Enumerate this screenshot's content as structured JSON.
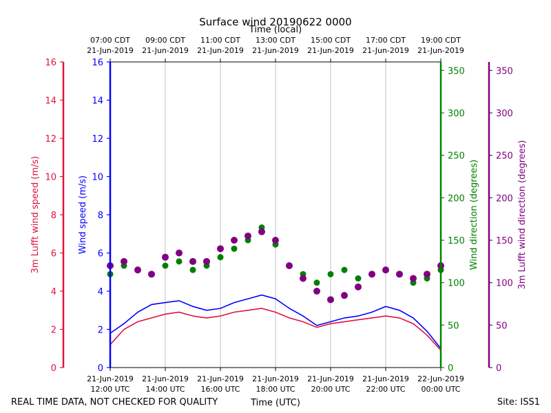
{
  "chart_data": {
    "type": "line",
    "title": "Surface wind 20190622 0000",
    "top_axis_label": "Time (local)",
    "xlabel": "Time (UTC)",
    "footer_left": "REAL TIME DATA, NOT CHECKED FOR QUALITY",
    "footer_right": "Site: ISS1",
    "x_range_hours_utc": [
      12,
      24
    ],
    "grid": true,
    "bottom_ticks": [
      {
        "hour": 12,
        "line1": "21-Jun-2019",
        "line2": "12:00 UTC"
      },
      {
        "hour": 14,
        "line1": "21-Jun-2019",
        "line2": "14:00 UTC"
      },
      {
        "hour": 16,
        "line1": "21-Jun-2019",
        "line2": "16:00 UTC"
      },
      {
        "hour": 18,
        "line1": "21-Jun-2019",
        "line2": "18:00 UTC"
      },
      {
        "hour": 20,
        "line1": "21-Jun-2019",
        "line2": "20:00 UTC"
      },
      {
        "hour": 22,
        "line1": "21-Jun-2019",
        "line2": "22:00 UTC"
      },
      {
        "hour": 24,
        "line1": "22-Jun-2019",
        "line2": "00:00 UTC"
      }
    ],
    "top_ticks": [
      {
        "hour": 12,
        "line1": "07:00 CDT",
        "line2": "21-Jun-2019"
      },
      {
        "hour": 14,
        "line1": "09:00 CDT",
        "line2": "21-Jun-2019"
      },
      {
        "hour": 16,
        "line1": "11:00 CDT",
        "line2": "21-Jun-2019"
      },
      {
        "hour": 18,
        "line1": "13:00 CDT",
        "line2": "21-Jun-2019"
      },
      {
        "hour": 20,
        "line1": "15:00 CDT",
        "line2": "21-Jun-2019"
      },
      {
        "hour": 22,
        "line1": "17:00 CDT",
        "line2": "21-Jun-2019"
      },
      {
        "hour": 24,
        "line1": "19:00 CDT",
        "line2": "21-Jun-2019"
      }
    ],
    "axes": {
      "lufft_speed": {
        "label": "3m Lufft wind speed (m/s)",
        "color": "#dc143c",
        "range": [
          0,
          16
        ],
        "ticks": [
          0,
          2,
          4,
          6,
          8,
          10,
          12,
          14,
          16
        ]
      },
      "wind_speed": {
        "label": "Wind speed (m/s)",
        "color": "#0000ff",
        "range": [
          0,
          16
        ],
        "ticks": [
          0,
          2,
          4,
          6,
          8,
          10,
          12,
          14,
          16
        ]
      },
      "wind_direction": {
        "label": "Wind direction (degrees)",
        "color": "#008000",
        "range": [
          0,
          360
        ],
        "ticks": [
          0,
          50,
          100,
          150,
          200,
          250,
          300,
          350
        ]
      },
      "lufft_direction": {
        "label": "3m Lufft wind direction (degrees)",
        "color": "#800080",
        "range": [
          0,
          360
        ],
        "ticks": [
          0,
          50,
          100,
          150,
          200,
          250,
          300,
          350
        ]
      }
    },
    "series": [
      {
        "name": "Wind speed",
        "axis": "wind_speed",
        "kind": "line",
        "x": [
          12.0,
          12.5,
          13.0,
          13.5,
          14.0,
          14.5,
          15.0,
          15.5,
          16.0,
          16.5,
          17.0,
          17.5,
          18.0,
          18.5,
          19.0,
          19.5,
          20.0,
          20.5,
          21.0,
          21.5,
          22.0,
          22.5,
          23.0,
          23.5,
          24.0
        ],
        "y": [
          1.8,
          2.3,
          2.9,
          3.3,
          3.4,
          3.5,
          3.2,
          3.0,
          3.1,
          3.4,
          3.6,
          3.8,
          3.6,
          3.1,
          2.7,
          2.2,
          2.4,
          2.6,
          2.7,
          2.9,
          3.2,
          3.0,
          2.6,
          1.9,
          1.0
        ]
      },
      {
        "name": "3m Lufft wind speed",
        "axis": "lufft_speed",
        "kind": "line",
        "x": [
          12.0,
          12.5,
          13.0,
          13.5,
          14.0,
          14.5,
          15.0,
          15.5,
          16.0,
          16.5,
          17.0,
          17.5,
          18.0,
          18.5,
          19.0,
          19.5,
          20.0,
          20.5,
          21.0,
          21.5,
          22.0,
          22.5,
          23.0,
          23.5,
          24.0
        ],
        "y": [
          1.2,
          2.0,
          2.4,
          2.6,
          2.8,
          2.9,
          2.7,
          2.6,
          2.7,
          2.9,
          3.0,
          3.1,
          2.9,
          2.6,
          2.4,
          2.1,
          2.3,
          2.4,
          2.5,
          2.6,
          2.7,
          2.6,
          2.3,
          1.7,
          0.9
        ]
      },
      {
        "name": "Wind direction",
        "axis": "wind_direction",
        "kind": "scatter",
        "x": [
          12.0,
          12.5,
          13.0,
          13.5,
          14.0,
          14.5,
          15.0,
          15.5,
          16.0,
          16.5,
          17.0,
          17.5,
          18.0,
          18.5,
          19.0,
          19.5,
          20.0,
          20.5,
          21.0,
          21.5,
          22.0,
          22.5,
          23.0,
          23.5,
          24.0
        ],
        "y": [
          110,
          120,
          115,
          110,
          120,
          125,
          115,
          120,
          130,
          140,
          150,
          165,
          145,
          120,
          110,
          100,
          110,
          115,
          105,
          110,
          115,
          110,
          100,
          105,
          115
        ]
      },
      {
        "name": "3m Lufft wind direction",
        "axis": "lufft_direction",
        "kind": "scatter",
        "x": [
          12.0,
          12.5,
          13.0,
          13.5,
          14.0,
          14.5,
          15.0,
          15.5,
          16.0,
          16.5,
          17.0,
          17.5,
          18.0,
          18.5,
          19.0,
          19.5,
          20.0,
          20.5,
          21.0,
          21.5,
          22.0,
          22.5,
          23.0,
          23.5,
          24.0
        ],
        "y": [
          120,
          125,
          115,
          110,
          130,
          135,
          125,
          125,
          140,
          150,
          155,
          160,
          150,
          120,
          105,
          90,
          80,
          85,
          95,
          110,
          115,
          110,
          105,
          110,
          120
        ]
      }
    ]
  }
}
